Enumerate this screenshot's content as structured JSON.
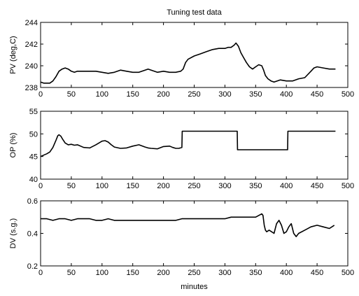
{
  "chart_data": {
    "type": "line",
    "title": "Tuning test data",
    "xlabel": "minutes",
    "xlim": [
      0,
      500
    ],
    "xticks": [
      "0",
      "50",
      "100",
      "150",
      "200",
      "250",
      "300",
      "350",
      "400",
      "450",
      "500"
    ],
    "grid": false,
    "subplots": [
      {
        "id": "pv",
        "ylabel": "PV (deg,C)",
        "ylim": [
          238,
          244
        ],
        "yticks": [
          "238",
          "240",
          "242",
          "244"
        ],
        "series": [
          {
            "color": "#000000",
            "x": [
              0,
              5,
              10,
              15,
              20,
              25,
              30,
              35,
              40,
              45,
              50,
              55,
              60,
              70,
              80,
              90,
              100,
              110,
              120,
              130,
              140,
              150,
              160,
              170,
              175,
              180,
              190,
              200,
              210,
              220,
              228,
              232,
              236,
              240,
              250,
              260,
              270,
              280,
              290,
              300,
              305,
              310,
              315,
              318,
              322,
              326,
              330,
              335,
              340,
              345,
              350,
              355,
              360,
              363,
              366,
              370,
              375,
              380,
              390,
              400,
              410,
              420,
              430,
              440,
              445,
              450,
              460,
              470,
              480
            ],
            "y": [
              238.5,
              238.4,
              238.4,
              238.4,
              238.6,
              239.0,
              239.5,
              239.7,
              239.8,
              239.7,
              239.5,
              239.4,
              239.5,
              239.5,
              239.5,
              239.5,
              239.4,
              239.3,
              239.4,
              239.6,
              239.5,
              239.4,
              239.4,
              239.6,
              239.7,
              239.6,
              239.4,
              239.5,
              239.4,
              239.4,
              239.5,
              239.7,
              240.3,
              240.6,
              240.9,
              241.1,
              241.3,
              241.5,
              241.6,
              241.6,
              241.7,
              241.7,
              241.9,
              242.1,
              241.8,
              241.2,
              240.8,
              240.3,
              239.9,
              239.7,
              239.9,
              240.1,
              240.0,
              239.6,
              239.1,
              238.8,
              238.6,
              238.5,
              238.7,
              238.6,
              238.6,
              238.8,
              238.9,
              239.5,
              239.8,
              239.9,
              239.8,
              239.7,
              239.7
            ]
          }
        ]
      },
      {
        "id": "op",
        "ylabel": "OP (%)",
        "ylim": [
          40,
          55
        ],
        "yticks": [
          "40",
          "45",
          "50",
          "55"
        ],
        "series": [
          {
            "color": "#000000",
            "x": [
              0,
              5,
              10,
              15,
              20,
              25,
              28,
              30,
              33,
              36,
              40,
              45,
              50,
              55,
              60,
              70,
              80,
              90,
              100,
              105,
              110,
              115,
              120,
              130,
              140,
              150,
              160,
              170,
              175,
              180,
              190,
              200,
              210,
              215,
              220,
              225,
              230,
              230.5,
              320,
              320.5,
              402,
              402.5,
              480
            ],
            "y": [
              45.0,
              45.3,
              45.6,
              46.0,
              47.0,
              48.6,
              49.6,
              49.8,
              49.5,
              48.8,
              48.0,
              47.6,
              47.7,
              47.5,
              47.6,
              47.0,
              46.9,
              47.6,
              48.4,
              48.5,
              48.2,
              47.6,
              47.1,
              46.8,
              46.9,
              47.3,
              47.6,
              47.1,
              46.9,
              46.8,
              46.7,
              47.2,
              47.3,
              47.0,
              46.8,
              46.8,
              47.0,
              50.6,
              50.6,
              46.5,
              46.5,
              50.6,
              50.6
            ]
          }
        ]
      },
      {
        "id": "dv",
        "ylabel": "DV (s.g.)",
        "ylim": [
          0.2,
          0.6
        ],
        "yticks": [
          "0.2",
          "0.4",
          "0.6"
        ],
        "series": [
          {
            "color": "#000000",
            "x": [
              0,
              10,
              20,
              30,
              40,
              50,
              60,
              70,
              80,
              90,
              100,
              110,
              120,
              130,
              140,
              150,
              160,
              170,
              180,
              190,
              200,
              210,
              220,
              230,
              240,
              250,
              260,
              270,
              280,
              290,
              300,
              310,
              320,
              330,
              340,
              350,
              355,
              360,
              362,
              364,
              366,
              368,
              372,
              376,
              380,
              384,
              388,
              392,
              396,
              400,
              404,
              408,
              412,
              416,
              420,
              430,
              440,
              450,
              460,
              470,
              478
            ],
            "y": [
              0.49,
              0.49,
              0.48,
              0.49,
              0.49,
              0.48,
              0.49,
              0.49,
              0.49,
              0.48,
              0.48,
              0.49,
              0.48,
              0.48,
              0.48,
              0.48,
              0.48,
              0.48,
              0.48,
              0.48,
              0.48,
              0.48,
              0.48,
              0.49,
              0.49,
              0.49,
              0.49,
              0.49,
              0.49,
              0.49,
              0.49,
              0.5,
              0.5,
              0.5,
              0.5,
              0.5,
              0.51,
              0.52,
              0.51,
              0.45,
              0.42,
              0.41,
              0.42,
              0.41,
              0.4,
              0.46,
              0.48,
              0.45,
              0.4,
              0.41,
              0.44,
              0.46,
              0.4,
              0.38,
              0.4,
              0.42,
              0.44,
              0.45,
              0.44,
              0.43,
              0.45
            ]
          }
        ]
      }
    ]
  }
}
